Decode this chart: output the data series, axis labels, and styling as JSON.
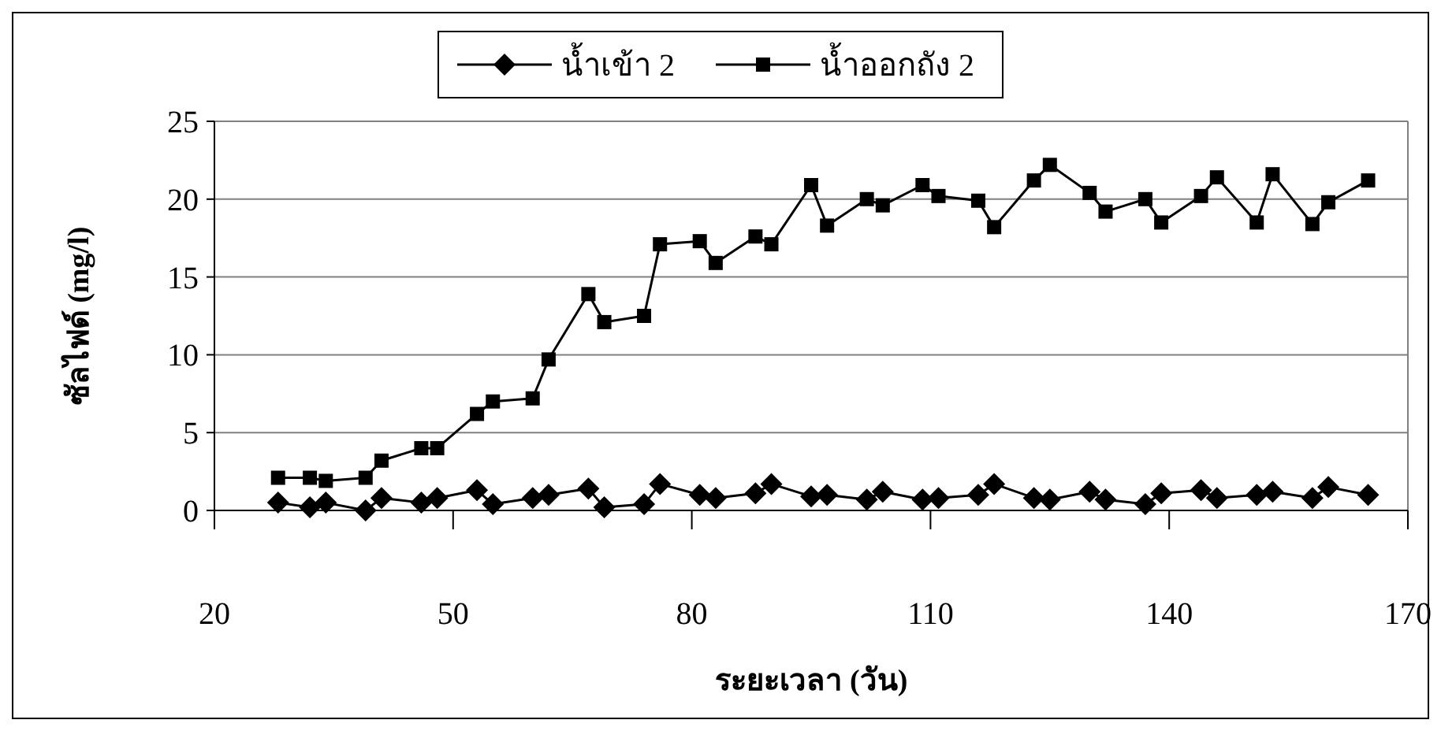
{
  "chart_data": {
    "type": "line",
    "xlabel": "ระยะเวลา (วัน)",
    "ylabel": "ซัลไฟด์ (mg/l)",
    "xlim": [
      20,
      170
    ],
    "xticks": [
      20,
      50,
      80,
      110,
      140,
      170
    ],
    "ylim": [
      0,
      25
    ],
    "yticks": [
      0,
      5,
      10,
      15,
      20,
      25
    ],
    "grid": "y",
    "legend": "top",
    "line_style": "solid",
    "series": [
      {
        "name": "น้ำเข้า 2",
        "color": "#000000",
        "marker": "diamond",
        "x": [
          28,
          32,
          34,
          39,
          41,
          46,
          48,
          53,
          55,
          60,
          62,
          67,
          69,
          74,
          76,
          81,
          83,
          88,
          90,
          95,
          97,
          102,
          104,
          109,
          111,
          116,
          118,
          123,
          125,
          130,
          132,
          137,
          139,
          144,
          146,
          151,
          153,
          158,
          160,
          165
        ],
        "values": [
          0.5,
          0.2,
          0.5,
          0,
          0.8,
          0.5,
          0.8,
          1.3,
          0.4,
          0.8,
          1.0,
          1.4,
          0.2,
          0.4,
          1.7,
          1.0,
          0.8,
          1.1,
          1.7,
          0.9,
          1.0,
          0.7,
          1.2,
          0.7,
          0.8,
          1.0,
          1.7,
          0.8,
          0.7,
          1.2,
          0.7,
          0.4,
          1.1,
          1.3,
          0.8,
          1.0,
          1.2,
          0.8,
          1.5,
          1.0
        ]
      },
      {
        "name": "น้ำออกถัง 2",
        "color": "#000000",
        "marker": "square",
        "x": [
          28,
          32,
          34,
          39,
          41,
          46,
          48,
          53,
          55,
          60,
          62,
          67,
          69,
          74,
          76,
          81,
          83,
          88,
          90,
          95,
          97,
          102,
          104,
          109,
          111,
          116,
          118,
          123,
          125,
          130,
          132,
          137,
          139,
          144,
          146,
          151,
          153,
          158,
          160,
          165
        ],
        "values": [
          2.1,
          2.1,
          1.9,
          2.1,
          3.2,
          4.0,
          4.0,
          6.2,
          7.0,
          7.2,
          9.7,
          13.9,
          12.1,
          12.5,
          17.1,
          17.3,
          15.9,
          17.6,
          17.1,
          20.9,
          18.3,
          20.0,
          19.6,
          20.9,
          20.2,
          19.9,
          18.2,
          21.2,
          22.2,
          20.4,
          19.2,
          20.0,
          18.5,
          20.2,
          21.4,
          18.5,
          21.6,
          18.4,
          19.8,
          21.2
        ]
      }
    ]
  }
}
